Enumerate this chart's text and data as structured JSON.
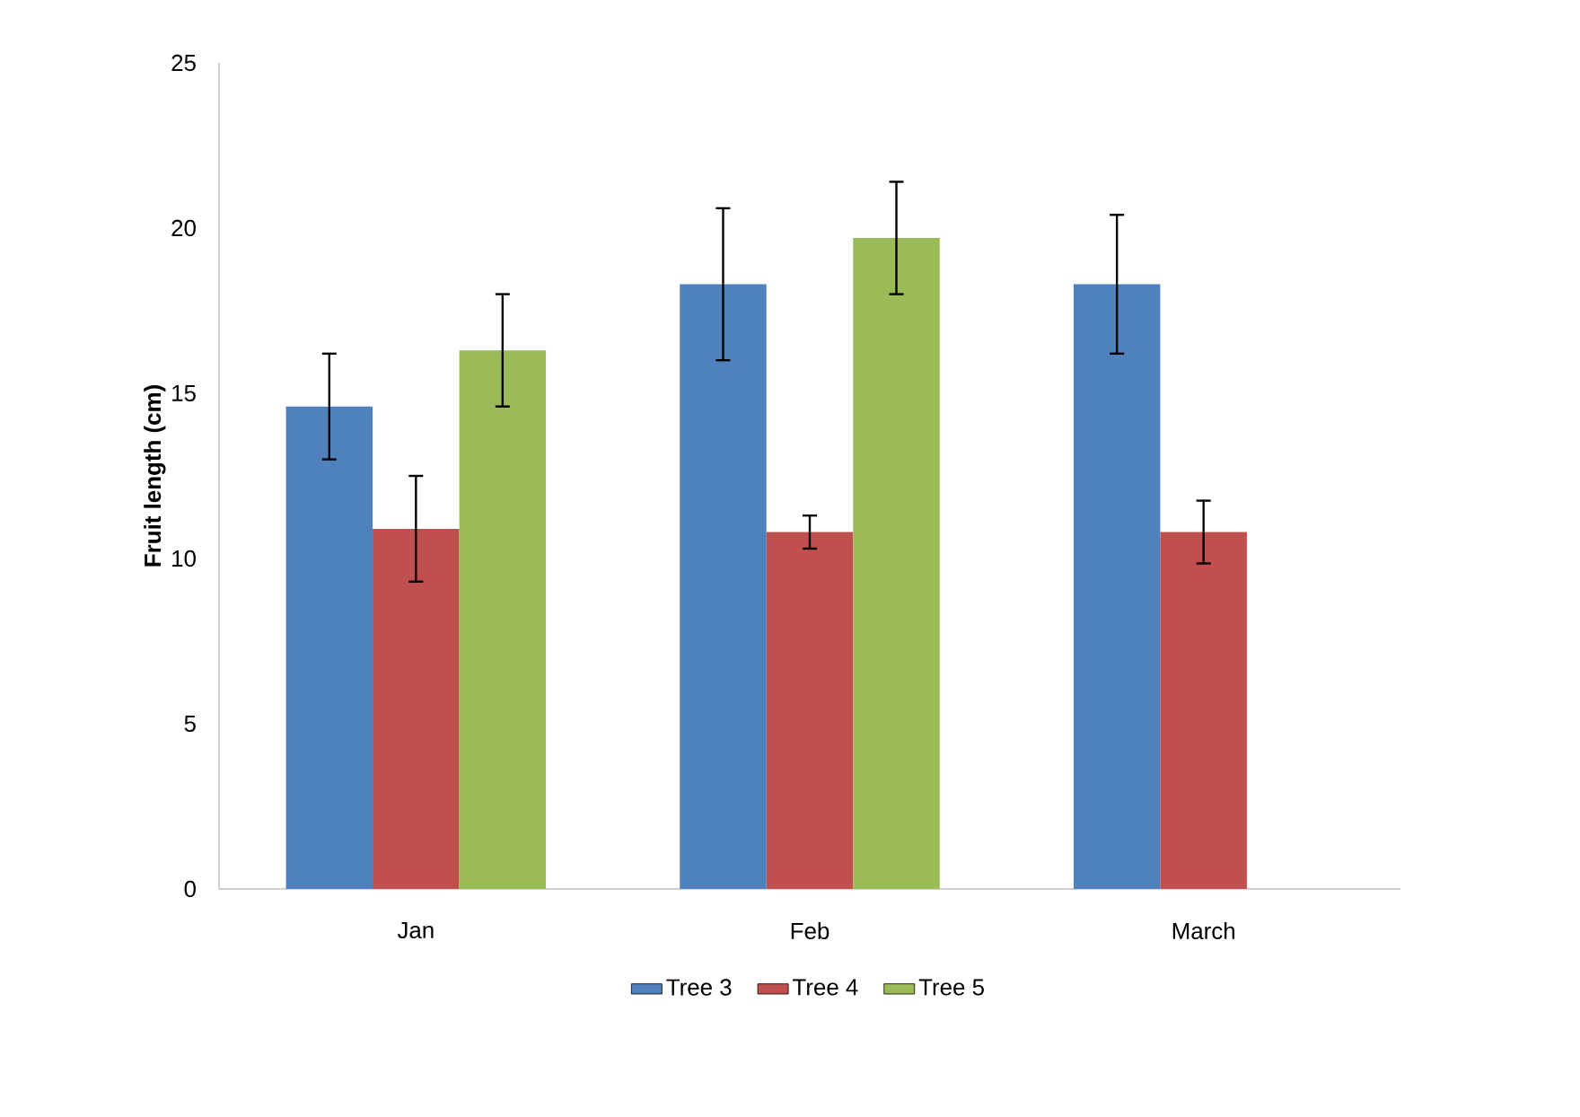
{
  "chart_data": {
    "type": "bar",
    "ylabel": "Fruit length (cm)",
    "categories": [
      "Jan",
      "Feb",
      "March"
    ],
    "series": [
      {
        "name": "Tree 3",
        "color": "#4f81bd",
        "values": [
          14.6,
          18.3,
          18.3
        ],
        "errors": [
          1.6,
          2.3,
          2.1
        ]
      },
      {
        "name": "Tree 4",
        "color": "#c0504d",
        "values": [
          10.9,
          10.8,
          10.8
        ],
        "errors": [
          1.6,
          0.5,
          0.95
        ]
      },
      {
        "name": "Tree 5",
        "color": "#9bbb59",
        "values": [
          16.3,
          19.7,
          null
        ],
        "errors": [
          1.7,
          1.7,
          null
        ]
      }
    ],
    "ylim": [
      0,
      25
    ],
    "yticks": [
      0,
      5,
      10,
      15,
      20,
      25
    ],
    "grid": false,
    "legend": "bottom"
  }
}
